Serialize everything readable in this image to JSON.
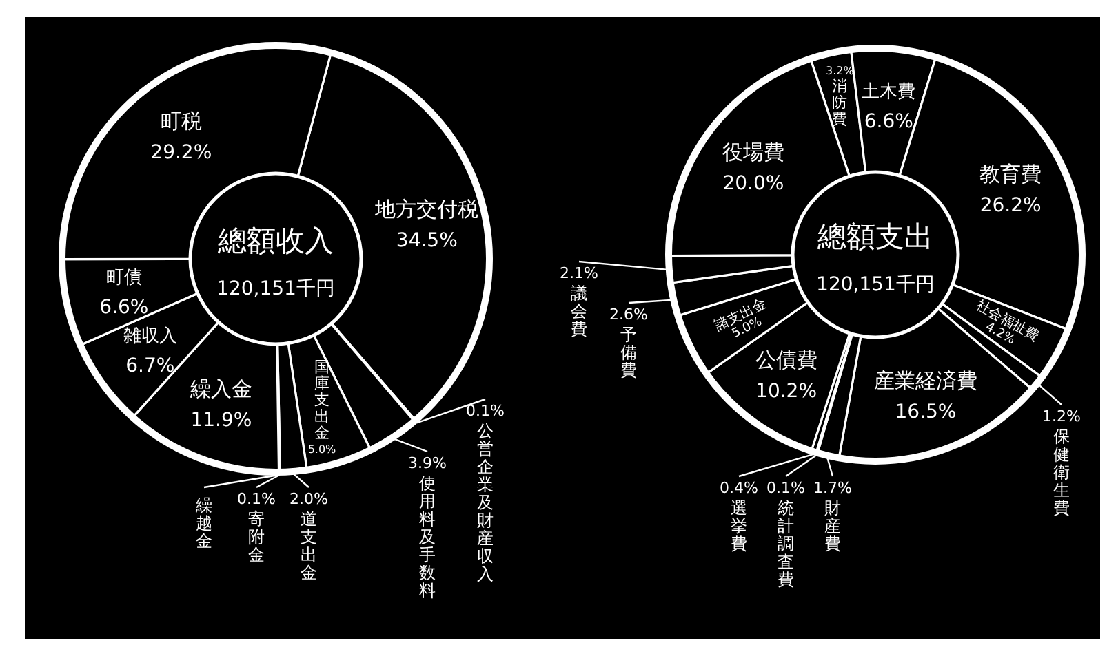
{
  "chart_data": [
    {
      "type": "donut",
      "title": "總額收入",
      "subtitle": "120,151千円",
      "categories": [
        "地方交付税",
        "公営企業及財産収入",
        "使用料及手数料",
        "国庫支出金",
        "道支出金",
        "寄附金",
        "繰越金",
        "繰入金",
        "雑収入",
        "町債",
        "町税"
      ],
      "values": [
        34.5,
        0.1,
        3.9,
        5.0,
        2.0,
        0.1,
        0,
        11.9,
        6.7,
        6.6,
        29.2
      ],
      "value_labels": [
        "34.5%",
        "0.1%",
        "3.9%",
        "5.0%",
        "2.0%",
        "0.1%",
        null,
        "11.9%",
        "6.7%",
        "6.6%",
        "29.2%"
      ],
      "colors": [
        "#000000",
        "#000000",
        "#000000",
        "#000000",
        "#000000",
        "#000000",
        "#000000",
        "#000000",
        "#000000",
        "#000000",
        "#000000"
      ]
    },
    {
      "type": "donut",
      "title": "總額支出",
      "subtitle": "120,151千円",
      "categories": [
        "消防費",
        "土木費",
        "教育費",
        "社会福祉費",
        "保健衛生費",
        "産業経済費",
        "財産費",
        "統計調査費",
        "選挙費",
        "公債費",
        "諸支出金",
        "予備費",
        "議会費",
        "役場費"
      ],
      "values": [
        3.2,
        6.6,
        26.2,
        4.2,
        1.2,
        16.5,
        1.7,
        0.1,
        0.4,
        10.2,
        5.0,
        2.6,
        2.1,
        20.0
      ],
      "value_labels": [
        "3.2%",
        "6.6%",
        "26.2%",
        "4.2%",
        "1.2%",
        "16.5%",
        "1.7%",
        "0.1%",
        "0.4%",
        "10.2%",
        "5.0%",
        "2.6%",
        "2.1%",
        "20.0%"
      ],
      "colors": [
        "#000000",
        "#000000",
        "#000000",
        "#000000",
        "#000000",
        "#000000",
        "#000000",
        "#000000",
        "#000000",
        "#000000",
        "#000000",
        "#000000",
        "#000000",
        "#000000"
      ]
    }
  ]
}
